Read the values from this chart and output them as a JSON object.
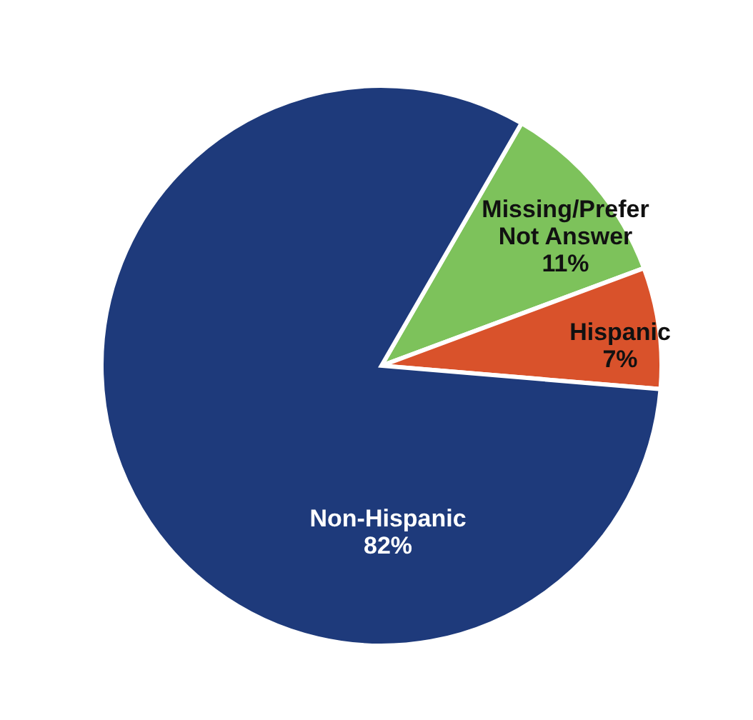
{
  "chart_data": {
    "type": "pie",
    "categories": [
      "Missing/Prefer Not Answer",
      "Hispanic",
      "Non-Hispanic"
    ],
    "values": [
      11,
      7,
      82
    ],
    "value_labels": [
      "11%",
      "7%",
      "82%"
    ],
    "colors": [
      "#7dc25b",
      "#d9522b",
      "#1e3a7b"
    ]
  }
}
